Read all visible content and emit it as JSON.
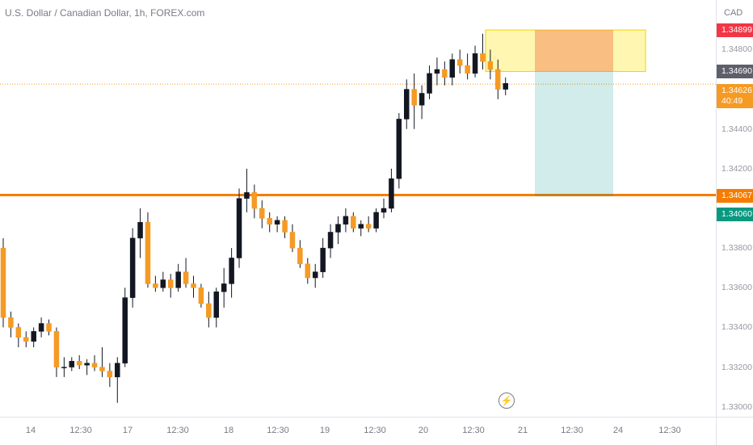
{
  "symbol": {
    "title": "U.S. Dollar / Canadian Dollar, 1h, FOREX.com"
  },
  "price_scale": {
    "currency": "CAD",
    "ticks": [
      "1.34800",
      "1.34400",
      "1.34200",
      "1.33800",
      "1.33600",
      "1.33400",
      "1.33200",
      "1.33000"
    ],
    "badges": {
      "stop": "1.34899",
      "entry": "1.34690",
      "last_price": "1.34626",
      "countdown": "40:49",
      "support": "1.34067",
      "target": "1.34060"
    }
  },
  "time_axis": {
    "labels": [
      "14",
      "12:30",
      "17",
      "12:30",
      "18",
      "12:30",
      "19",
      "12:30",
      "20",
      "12:30",
      "21",
      "12:30",
      "24",
      "12:30"
    ]
  },
  "colors": {
    "up": "#ffffff",
    "down": "#f59a23",
    "candle_body_up_outline": "#131722",
    "support_line": "#f57c00",
    "stop_zone": "rgba(255,235,59,0.40)",
    "target_zone": "rgba(0,150,136,0.18)",
    "badge_stop": "#f23645",
    "badge_entry": "#5d606b",
    "badge_last": "#f59a23",
    "badge_support": "#f57c00",
    "badge_target": "#089981"
  },
  "chart_data": {
    "type": "candlestick",
    "y_range": [
      1.3295,
      1.3505
    ],
    "position": {
      "type": "short",
      "entry": 1.3469,
      "stop": 1.34899,
      "target": 1.3406
    },
    "support_level": 1.34067,
    "candles": [
      [
        1.338,
        1.3385,
        1.334,
        1.3345
      ],
      [
        1.3345,
        1.3348,
        1.3335,
        1.334
      ],
      [
        1.334,
        1.3342,
        1.333,
        1.3335
      ],
      [
        1.3335,
        1.3338,
        1.333,
        1.3333
      ],
      [
        1.3333,
        1.334,
        1.333,
        1.3338
      ],
      [
        1.3338,
        1.3345,
        1.3335,
        1.3342
      ],
      [
        1.3342,
        1.3344,
        1.3336,
        1.3338
      ],
      [
        1.3338,
        1.334,
        1.3315,
        1.332
      ],
      [
        1.332,
        1.3325,
        1.3315,
        1.332
      ],
      [
        1.332,
        1.3325,
        1.3318,
        1.3323
      ],
      [
        1.3323,
        1.3326,
        1.3319,
        1.3321
      ],
      [
        1.3321,
        1.3324,
        1.3316,
        1.3322
      ],
      [
        1.3322,
        1.3326,
        1.3318,
        1.332
      ],
      [
        1.332,
        1.333,
        1.3315,
        1.3318
      ],
      [
        1.3318,
        1.3322,
        1.331,
        1.3315
      ],
      [
        1.3315,
        1.3325,
        1.3302,
        1.3322
      ],
      [
        1.3322,
        1.336,
        1.332,
        1.3355
      ],
      [
        1.3355,
        1.339,
        1.335,
        1.3385
      ],
      [
        1.3385,
        1.34,
        1.3375,
        1.3393
      ],
      [
        1.3393,
        1.3398,
        1.336,
        1.3362
      ],
      [
        1.3362,
        1.3366,
        1.3358,
        1.336
      ],
      [
        1.336,
        1.3368,
        1.3358,
        1.3364
      ],
      [
        1.3364,
        1.3367,
        1.3355,
        1.336
      ],
      [
        1.336,
        1.3372,
        1.3358,
        1.3368
      ],
      [
        1.3368,
        1.3375,
        1.336,
        1.3362
      ],
      [
        1.3362,
        1.3366,
        1.3355,
        1.336
      ],
      [
        1.336,
        1.3362,
        1.335,
        1.3352
      ],
      [
        1.3352,
        1.3358,
        1.334,
        1.3345
      ],
      [
        1.3345,
        1.336,
        1.334,
        1.3358
      ],
      [
        1.3358,
        1.337,
        1.335,
        1.3362
      ],
      [
        1.3362,
        1.338,
        1.3355,
        1.3375
      ],
      [
        1.3375,
        1.341,
        1.337,
        1.3405
      ],
      [
        1.3405,
        1.342,
        1.3398,
        1.3408
      ],
      [
        1.3408,
        1.3412,
        1.3395,
        1.34
      ],
      [
        1.34,
        1.3404,
        1.339,
        1.3395
      ],
      [
        1.3395,
        1.3398,
        1.3388,
        1.3392
      ],
      [
        1.3392,
        1.3396,
        1.3388,
        1.3394
      ],
      [
        1.3394,
        1.3396,
        1.3385,
        1.3388
      ],
      [
        1.3388,
        1.3392,
        1.3378,
        1.338
      ],
      [
        1.338,
        1.3384,
        1.337,
        1.3372
      ],
      [
        1.3372,
        1.3375,
        1.3362,
        1.3365
      ],
      [
        1.3365,
        1.3372,
        1.336,
        1.3368
      ],
      [
        1.3368,
        1.3385,
        1.3365,
        1.338
      ],
      [
        1.338,
        1.3392,
        1.3375,
        1.3388
      ],
      [
        1.3388,
        1.3396,
        1.3382,
        1.3392
      ],
      [
        1.3392,
        1.34,
        1.3388,
        1.3396
      ],
      [
        1.3396,
        1.3398,
        1.3388,
        1.339
      ],
      [
        1.339,
        1.3394,
        1.3386,
        1.3392
      ],
      [
        1.3392,
        1.3396,
        1.3388,
        1.339
      ],
      [
        1.339,
        1.34,
        1.3388,
        1.3398
      ],
      [
        1.3398,
        1.3405,
        1.3395,
        1.34
      ],
      [
        1.34,
        1.342,
        1.3398,
        1.3415
      ],
      [
        1.3415,
        1.3448,
        1.341,
        1.3445
      ],
      [
        1.3445,
        1.3465,
        1.344,
        1.346
      ],
      [
        1.346,
        1.3468,
        1.344,
        1.3452
      ],
      [
        1.3452,
        1.3462,
        1.3445,
        1.3458
      ],
      [
        1.3458,
        1.3472,
        1.3455,
        1.3468
      ],
      [
        1.3468,
        1.3476,
        1.3462,
        1.347
      ],
      [
        1.347,
        1.3474,
        1.3462,
        1.3466
      ],
      [
        1.3466,
        1.3478,
        1.3462,
        1.3475
      ],
      [
        1.3475,
        1.348,
        1.3468,
        1.3472
      ],
      [
        1.3472,
        1.3478,
        1.3465,
        1.3468
      ],
      [
        1.3468,
        1.3482,
        1.3466,
        1.3478
      ],
      [
        1.3478,
        1.3488,
        1.347,
        1.3474
      ],
      [
        1.3474,
        1.348,
        1.3465,
        1.347
      ],
      [
        1.347,
        1.3475,
        1.3455,
        1.346
      ],
      [
        1.346,
        1.3466,
        1.3457,
        1.3463
      ]
    ]
  }
}
